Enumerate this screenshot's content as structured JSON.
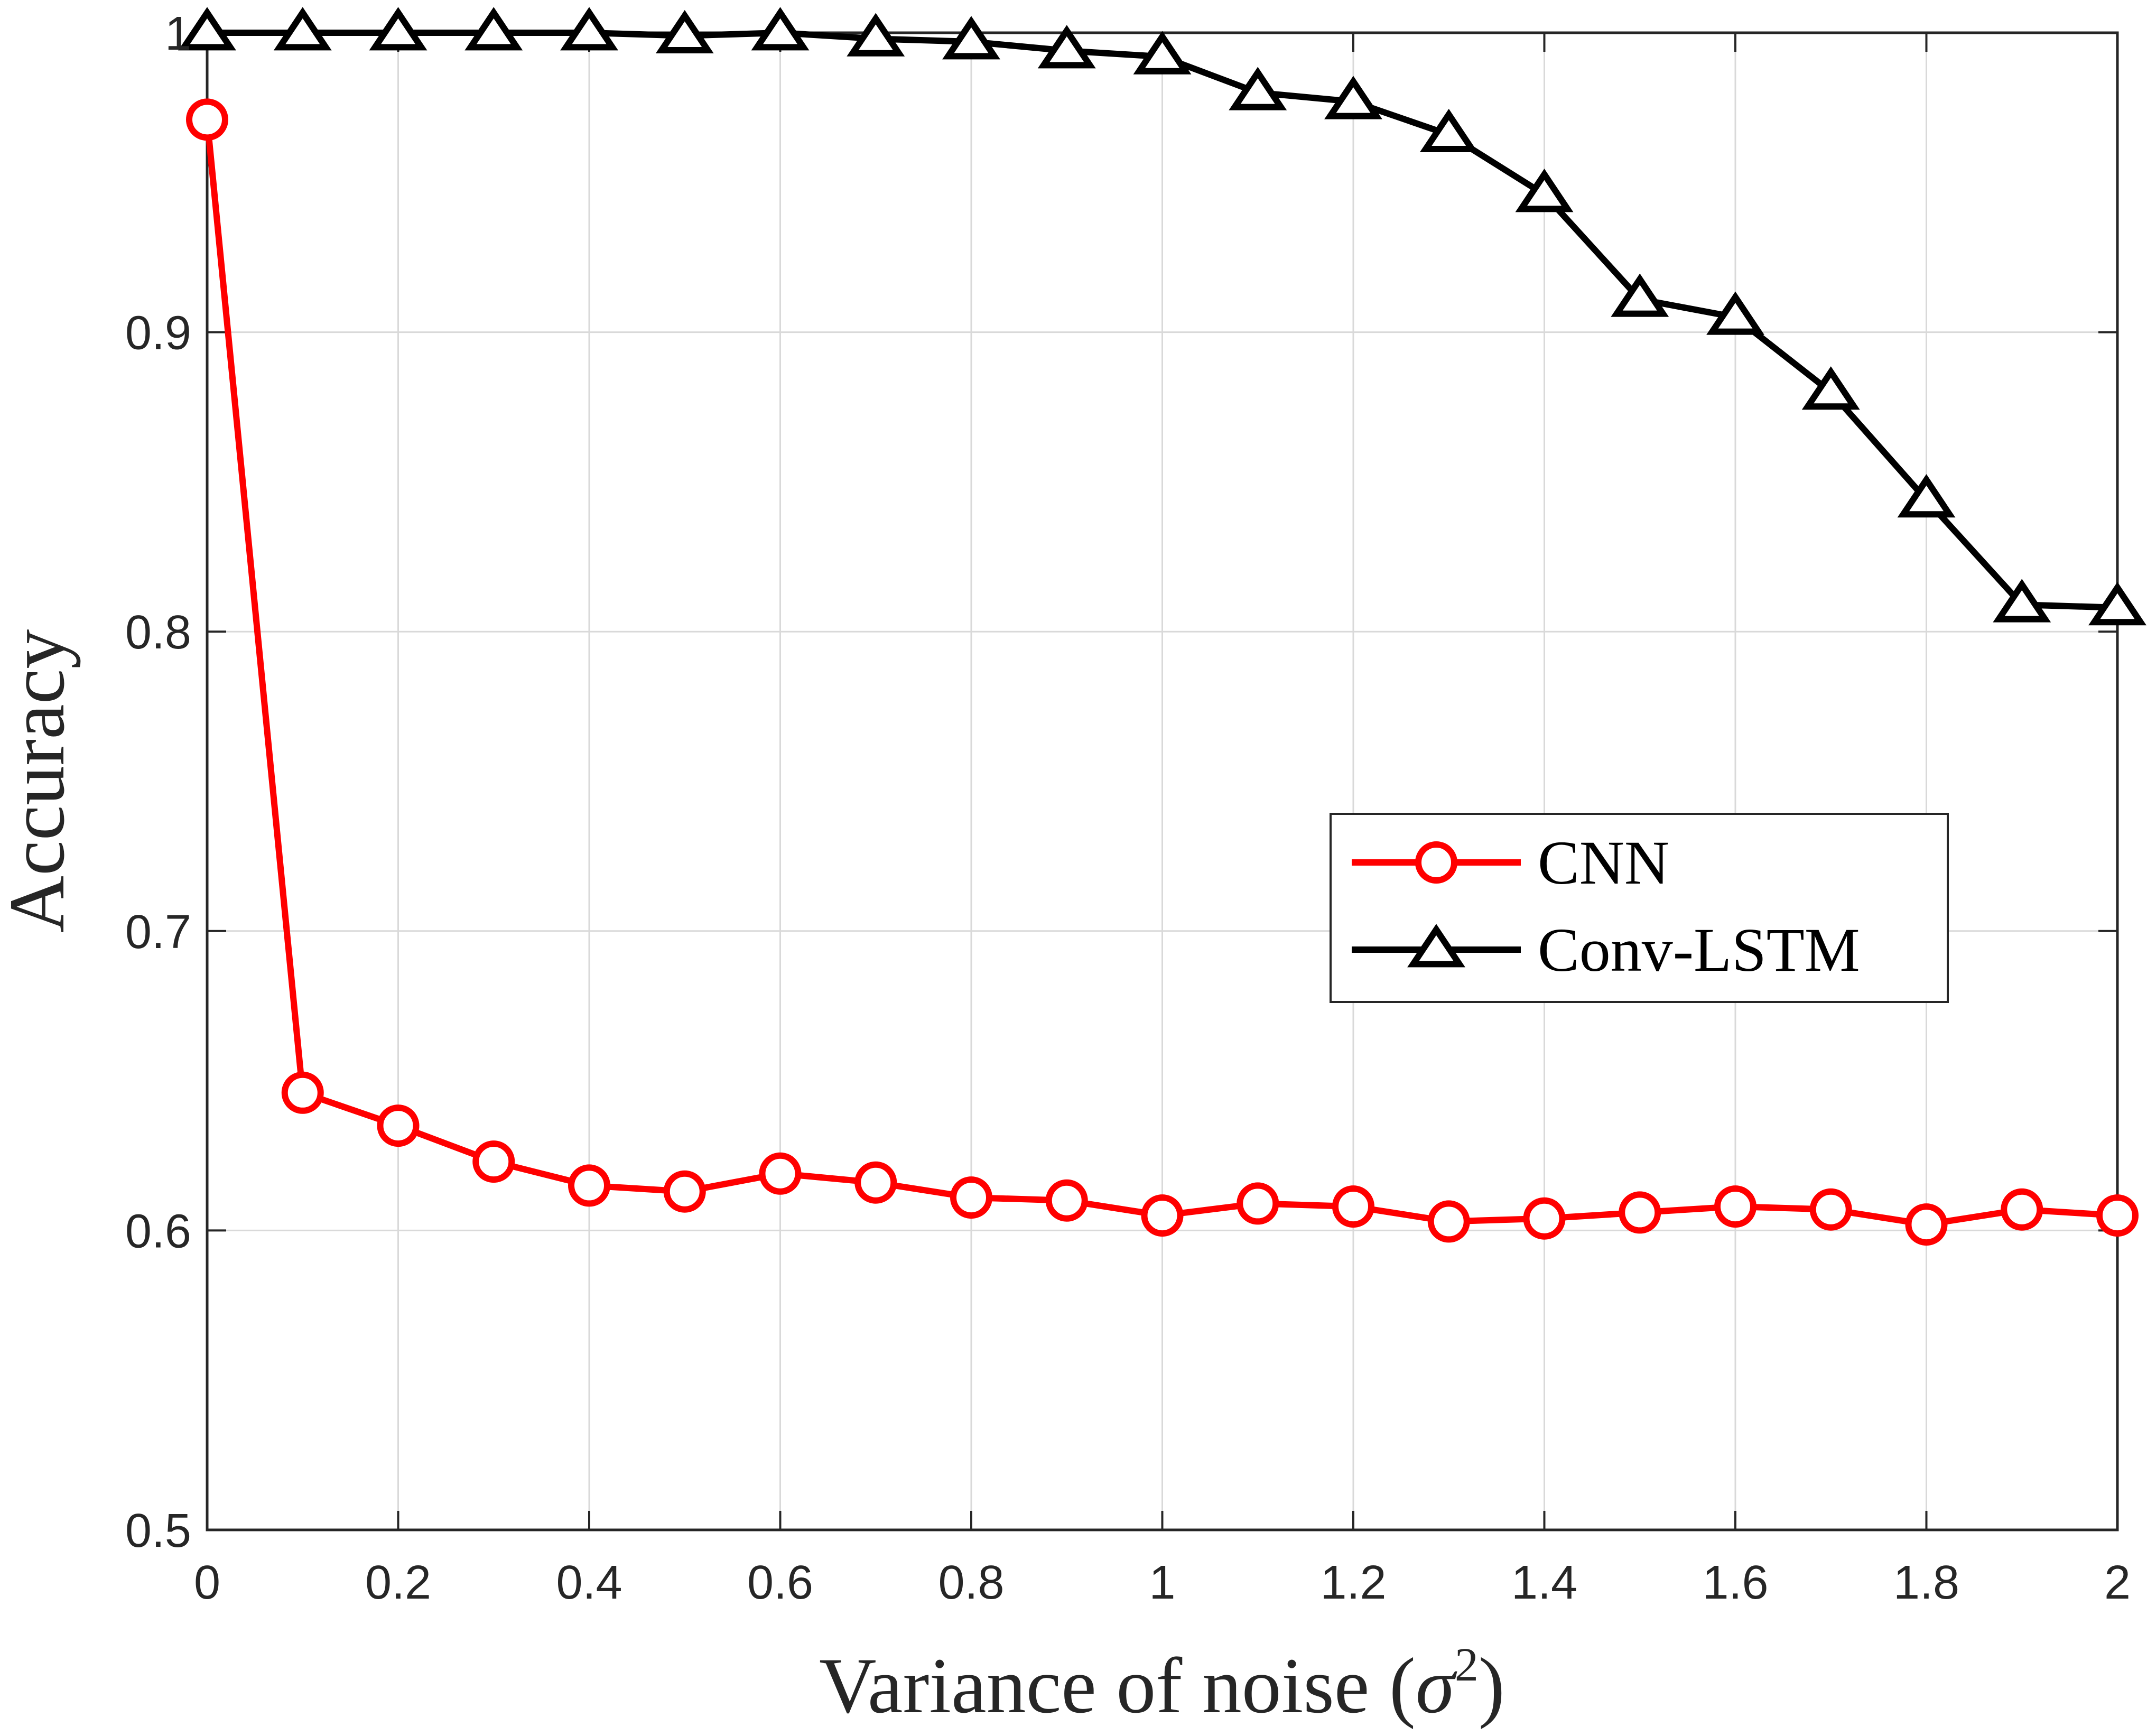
{
  "chart_data": {
    "type": "line",
    "title": "",
    "xlabel": "Variance of noise",
    "xlabel_symbol": "σ",
    "xlabel_power": "2",
    "ylabel": "Accuracy",
    "xlim": [
      0,
      2
    ],
    "ylim": [
      0.5,
      1.0
    ],
    "grid": true,
    "legend_position": "right-middle",
    "x_ticks": [
      "0",
      "0.2",
      "0.4",
      "0.6",
      "0.8",
      "1",
      "1.2",
      "1.4",
      "1.6",
      "1.8",
      "2"
    ],
    "x_tick_values": [
      0,
      0.2,
      0.4,
      0.6,
      0.8,
      1.0,
      1.2,
      1.4,
      1.6,
      1.8,
      2.0
    ],
    "y_ticks": [
      "0.5",
      "0.6",
      "0.7",
      "0.8",
      "0.9",
      "1"
    ],
    "y_tick_values": [
      0.5,
      0.6,
      0.7,
      0.8,
      0.9,
      1.0
    ],
    "x": [
      0,
      0.1,
      0.2,
      0.3,
      0.4,
      0.5,
      0.6,
      0.7,
      0.8,
      0.9,
      1.0,
      1.1,
      1.2,
      1.3,
      1.4,
      1.5,
      1.6,
      1.7,
      1.8,
      1.9,
      2.0
    ],
    "series": [
      {
        "name": "CNN",
        "color": "#ff0000",
        "marker": "circle",
        "values": [
          0.971,
          0.646,
          0.635,
          0.623,
          0.615,
          0.613,
          0.619,
          0.616,
          0.611,
          0.61,
          0.605,
          0.609,
          0.608,
          0.603,
          0.604,
          0.606,
          0.608,
          0.607,
          0.602,
          0.607,
          0.605
        ]
      },
      {
        "name": "Conv-LSTM",
        "color": "#000000",
        "marker": "triangle",
        "values": [
          1.0,
          1.0,
          1.0,
          1.0,
          1.0,
          0.999,
          1.0,
          0.998,
          0.997,
          0.994,
          0.992,
          0.98,
          0.977,
          0.966,
          0.946,
          0.911,
          0.905,
          0.88,
          0.844,
          0.809,
          0.808
        ]
      }
    ]
  }
}
